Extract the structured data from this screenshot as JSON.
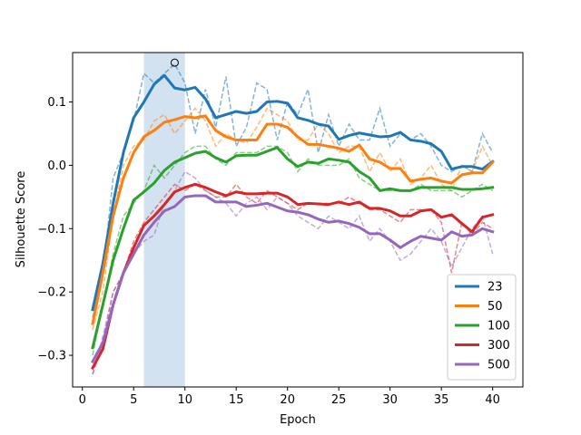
{
  "chart_data": {
    "type": "line",
    "title": "",
    "xlabel": "Epoch",
    "ylabel": "Silhouette Score",
    "xlim": [
      -0.95,
      42.95
    ],
    "ylim": [
      -0.35,
      0.178
    ],
    "xticks": [
      0,
      5,
      10,
      15,
      20,
      25,
      30,
      35,
      40
    ],
    "yticks": [
      -0.3,
      -0.2,
      -0.1,
      0.0,
      0.1
    ],
    "ytick_labels": [
      "−0.3",
      "−0.2",
      "−0.1",
      "0.0",
      "0.1"
    ],
    "highlight_span": {
      "x_start": 6,
      "x_end": 10,
      "color": "#b5cfe6"
    },
    "marker": {
      "x": 9,
      "y": 0.162,
      "shape": "open-circle"
    },
    "legend": {
      "placement": "lower-right"
    },
    "x": [
      1,
      2,
      3,
      4,
      5,
      6,
      7,
      8,
      9,
      10,
      11,
      12,
      13,
      14,
      15,
      16,
      17,
      18,
      19,
      20,
      21,
      22,
      23,
      24,
      25,
      26,
      27,
      28,
      29,
      30,
      31,
      32,
      33,
      34,
      35,
      36,
      37,
      38,
      39,
      40
    ],
    "series": [
      {
        "name": "23",
        "color": "#1f77b4",
        "smoothed": [
          -0.228,
          -0.155,
          -0.06,
          0.02,
          0.075,
          0.1,
          0.128,
          0.142,
          0.122,
          0.119,
          0.123,
          0.105,
          0.075,
          0.08,
          0.085,
          0.082,
          0.085,
          0.1,
          0.101,
          0.098,
          0.075,
          0.071,
          0.065,
          0.062,
          0.041,
          0.047,
          0.051,
          0.048,
          0.045,
          0.046,
          0.052,
          0.04,
          0.038,
          0.034,
          0.022,
          -0.006,
          -0.002,
          -0.002,
          -0.006,
          0.006
        ],
        "raw": [
          -0.24,
          -0.17,
          -0.02,
          0.02,
          0.07,
          0.145,
          0.13,
          0.145,
          0.16,
          0.13,
          0.05,
          0.12,
          0.06,
          0.14,
          0.03,
          0.06,
          0.13,
          0.12,
          0.04,
          0.1,
          0.08,
          0.12,
          0.02,
          0.08,
          0.03,
          0.065,
          0.04,
          0.04,
          0.09,
          0.03,
          0.05,
          0.04,
          0.05,
          0.03,
          0.0,
          -0.01,
          0.0,
          -0.01,
          0.05,
          0.02
        ]
      },
      {
        "name": "50",
        "color": "#ff7f0e",
        "smoothed": [
          -0.25,
          -0.17,
          -0.08,
          -0.02,
          0.02,
          0.045,
          0.055,
          0.068,
          0.072,
          0.077,
          0.075,
          0.078,
          0.055,
          0.045,
          0.04,
          0.04,
          0.04,
          0.065,
          0.065,
          0.06,
          0.045,
          0.033,
          0.033,
          0.03,
          0.027,
          0.022,
          0.032,
          0.01,
          0.005,
          -0.005,
          -0.005,
          -0.025,
          -0.022,
          -0.02,
          -0.025,
          -0.028,
          -0.015,
          -0.012,
          -0.012,
          0.005
        ],
        "raw": [
          -0.26,
          -0.2,
          -0.08,
          0.0,
          0.03,
          0.04,
          0.07,
          0.08,
          0.05,
          0.07,
          0.09,
          0.07,
          0.03,
          0.05,
          0.04,
          0.035,
          0.06,
          0.09,
          0.08,
          0.07,
          0.04,
          0.04,
          0.065,
          0.05,
          0.02,
          0.03,
          0.03,
          -0.01,
          0.02,
          -0.01,
          0.01,
          -0.03,
          -0.02,
          0.0,
          -0.03,
          -0.04,
          0.0,
          -0.01,
          0.03,
          0.0
        ]
      },
      {
        "name": "100",
        "color": "#2ca02c",
        "smoothed": [
          -0.288,
          -0.22,
          -0.15,
          -0.1,
          -0.055,
          -0.042,
          -0.028,
          -0.008,
          0.005,
          0.012,
          0.019,
          0.022,
          0.012,
          0.005,
          0.015,
          0.016,
          0.016,
          0.022,
          0.028,
          0.01,
          -0.002,
          0.005,
          0.003,
          0.01,
          0.008,
          0.005,
          -0.01,
          -0.02,
          -0.04,
          -0.037,
          -0.04,
          -0.04,
          -0.035,
          -0.035,
          -0.035,
          -0.035,
          -0.038,
          -0.038,
          -0.037,
          -0.035
        ],
        "raw": [
          -0.3,
          -0.22,
          -0.14,
          -0.08,
          -0.06,
          -0.04,
          0.0,
          -0.02,
          0.0,
          0.02,
          0.03,
          0.03,
          0.01,
          0.0,
          0.02,
          0.02,
          0.02,
          0.03,
          0.03,
          0.02,
          -0.01,
          0.01,
          0.0,
          0.0,
          0.0,
          0.01,
          -0.02,
          -0.03,
          -0.04,
          -0.04,
          -0.04,
          -0.04,
          -0.03,
          -0.04,
          -0.04,
          -0.04,
          -0.05,
          -0.04,
          -0.03,
          -0.04
        ]
      },
      {
        "name": "300",
        "color": "#d62728",
        "smoothed": [
          -0.32,
          -0.29,
          -0.22,
          -0.17,
          -0.13,
          -0.095,
          -0.08,
          -0.062,
          -0.042,
          -0.035,
          -0.03,
          -0.035,
          -0.042,
          -0.048,
          -0.042,
          -0.045,
          -0.045,
          -0.044,
          -0.044,
          -0.05,
          -0.062,
          -0.06,
          -0.061,
          -0.062,
          -0.058,
          -0.062,
          -0.058,
          -0.068,
          -0.068,
          -0.072,
          -0.08,
          -0.08,
          -0.072,
          -0.07,
          -0.082,
          -0.078,
          -0.092,
          -0.105,
          -0.082,
          -0.078
        ],
        "raw": [
          -0.33,
          -0.28,
          -0.2,
          -0.17,
          -0.12,
          -0.09,
          -0.07,
          -0.05,
          -0.03,
          -0.04,
          -0.03,
          -0.04,
          -0.05,
          -0.05,
          -0.03,
          -0.05,
          -0.06,
          -0.04,
          -0.05,
          -0.06,
          -0.07,
          -0.06,
          -0.06,
          -0.06,
          -0.06,
          -0.05,
          -0.06,
          -0.07,
          -0.07,
          -0.08,
          -0.09,
          -0.07,
          -0.07,
          -0.07,
          -0.09,
          -0.17,
          -0.09,
          -0.11,
          -0.09,
          -0.1
        ]
      },
      {
        "name": "500",
        "color": "#9467bd",
        "smoothed": [
          -0.31,
          -0.28,
          -0.22,
          -0.17,
          -0.14,
          -0.11,
          -0.09,
          -0.072,
          -0.065,
          -0.05,
          -0.048,
          -0.048,
          -0.058,
          -0.058,
          -0.058,
          -0.065,
          -0.063,
          -0.06,
          -0.066,
          -0.072,
          -0.074,
          -0.078,
          -0.085,
          -0.09,
          -0.088,
          -0.092,
          -0.098,
          -0.108,
          -0.108,
          -0.118,
          -0.13,
          -0.12,
          -0.112,
          -0.115,
          -0.118,
          -0.105,
          -0.112,
          -0.11,
          -0.1,
          -0.105
        ],
        "raw": [
          -0.33,
          -0.27,
          -0.2,
          -0.17,
          -0.14,
          -0.12,
          -0.11,
          -0.06,
          -0.04,
          -0.01,
          -0.02,
          -0.04,
          -0.05,
          -0.06,
          -0.08,
          -0.06,
          -0.05,
          -0.07,
          -0.05,
          -0.06,
          -0.08,
          -0.09,
          -0.1,
          -0.08,
          -0.09,
          -0.1,
          -0.08,
          -0.12,
          -0.1,
          -0.12,
          -0.15,
          -0.14,
          -0.12,
          -0.1,
          -0.12,
          -0.16,
          -0.13,
          -0.1,
          -0.08,
          -0.14
        ]
      }
    ]
  }
}
